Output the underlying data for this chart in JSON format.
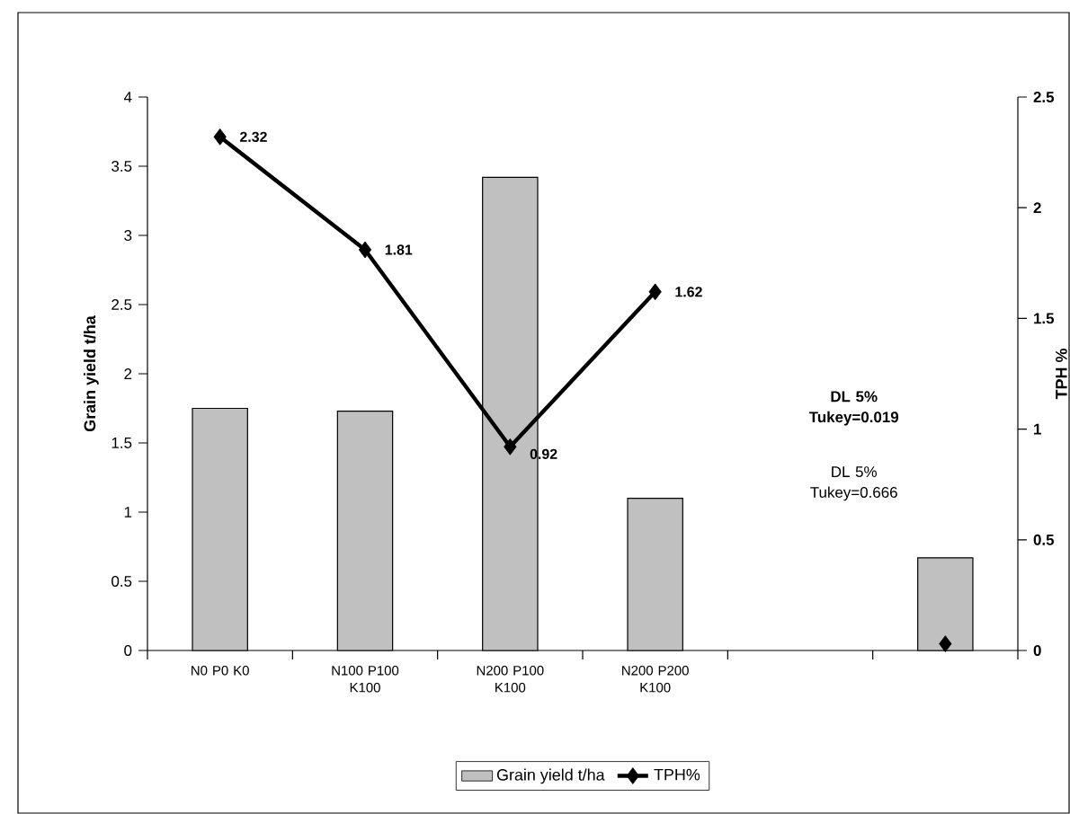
{
  "chart_data": {
    "type": "bar",
    "categories": [
      "N0 P0 K0",
      "N100 P100 K100",
      "N200 P100 K100",
      "N200 P200 K100",
      null,
      null
    ],
    "series": [
      {
        "name": "Grain yield t/ha",
        "color": "#c0c0c0",
        "values": [
          1.75,
          1.73,
          3.42,
          1.1,
          null,
          0.67
        ]
      },
      {
        "name": "TPH%",
        "type": "line",
        "axis": "y2",
        "color": "#000000",
        "marker": "diamond",
        "values": [
          2.32,
          1.81,
          0.92,
          1.62,
          null,
          0.03
        ],
        "value_labels": [
          "2.32",
          "1.81",
          "0.92",
          "1.62",
          null,
          null
        ]
      }
    ],
    "ylabel": "Grain yield t/ha",
    "y2label": "TPH %",
    "ylim": [
      0,
      4
    ],
    "yticks": [
      0,
      0.5,
      1,
      1.5,
      2,
      2.5,
      3,
      3.5,
      4
    ],
    "y2lim": [
      0,
      2.5
    ],
    "y2ticks": [
      0,
      0.5,
      1,
      1.5,
      2,
      2.5
    ],
    "annotations": [
      "DL 5% Tukey=0.019",
      "DL 5% Tukey=0.666"
    ],
    "legend": "bottom",
    "grid": false
  }
}
